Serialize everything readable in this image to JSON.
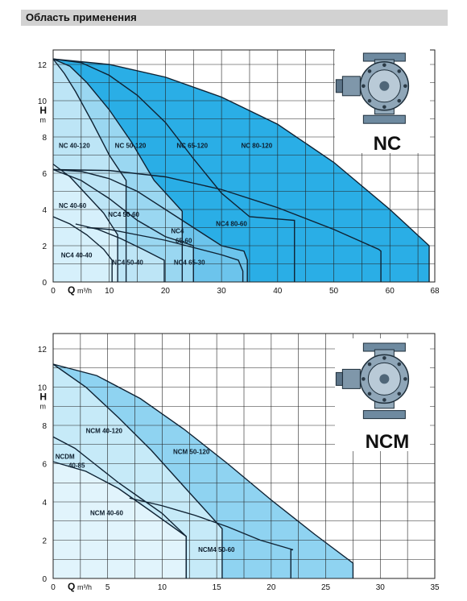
{
  "header": {
    "title": "Область применения"
  },
  "colors": {
    "background": "#ffffff",
    "grid": "#222222",
    "header_bar": "#d2d2d2",
    "fills_nc": [
      "#d6f0fb",
      "#bde5f6",
      "#9ad7f1",
      "#6cc4ec",
      "#2aaee6"
    ],
    "fills_ncm": [
      "#e1f4fc",
      "#c6eaf8",
      "#8fd3f1"
    ]
  },
  "chart_data": [
    {
      "type": "area",
      "product": "NC",
      "xlabel": "Q",
      "xunit": "m³/h",
      "ylabel": "H",
      "yunit": "m",
      "xlim": [
        0,
        68
      ],
      "ylim": [
        0,
        12.8
      ],
      "x_ticks": [
        0,
        10,
        20,
        30,
        40,
        50,
        60,
        68
      ],
      "y_ticks": [
        0,
        2,
        4,
        6,
        8,
        10,
        12
      ],
      "tick_labels_x": [
        "0",
        "10",
        "20",
        "30",
        "40",
        "50",
        "60",
        "68"
      ],
      "tick_labels_y": [
        "0",
        "2",
        "4",
        "6",
        "8",
        "10",
        "12"
      ],
      "pump_illustration": "pump-drawing",
      "series": [
        {
          "name": "NC 80-120",
          "points": [
            [
              0,
              12.3
            ],
            [
              10,
              12.0
            ],
            [
              20,
              11.3
            ],
            [
              30,
              10.2
            ],
            [
              40,
              8.7
            ],
            [
              50,
              6.6
            ],
            [
              60,
              4.0
            ],
            [
              67,
              2.0
            ]
          ],
          "qmax": 67,
          "hmin": 2.0
        },
        {
          "name": "NC 65-120",
          "points": [
            [
              0,
              12.3
            ],
            [
              5,
              12.1
            ],
            [
              10,
              11.4
            ],
            [
              15,
              10.3
            ],
            [
              20,
              8.8
            ],
            [
              25,
              6.8
            ],
            [
              30,
              4.9
            ],
            [
              35,
              3.6
            ],
            [
              43,
              3.4
            ]
          ],
          "qmax": 43,
          "hmin": 3.4
        },
        {
          "name": "NC 50-120",
          "points": [
            [
              0,
              12.3
            ],
            [
              3,
              11.9
            ],
            [
              6,
              11.0
            ],
            [
              10,
              9.5
            ],
            [
              14,
              7.7
            ],
            [
              18,
              5.6
            ],
            [
              23,
              3.9
            ]
          ],
          "qmax": 23,
          "hmin": 3.9
        },
        {
          "name": "NC 40-120",
          "points": [
            [
              0,
              12.3
            ],
            [
              2,
              11.5
            ],
            [
              4,
              10.5
            ],
            [
              7,
              8.8
            ],
            [
              10,
              7.0
            ],
            [
              13,
              5.6
            ]
          ],
          "qmax": 13,
          "hmin": 5.6
        },
        {
          "name": "NC4 80-60",
          "points": [
            [
              0,
              6.2
            ],
            [
              10,
              6.15
            ],
            [
              20,
              5.8
            ],
            [
              30,
              5.1
            ],
            [
              40,
              4.1
            ],
            [
              50,
              2.9
            ],
            [
              58,
              1.8
            ]
          ],
          "qmax": 58.4,
          "hmin": 1.7
        },
        {
          "name": "NC4 65-60",
          "points": [
            [
              0,
              6.2
            ],
            [
              5,
              6.1
            ],
            [
              10,
              5.7
            ],
            [
              15,
              5.0
            ],
            [
              20,
              4.0
            ],
            [
              25,
              3.0
            ],
            [
              30,
              2.0
            ],
            [
              34,
              1.7
            ]
          ],
          "qmax": 34.6,
          "hmin": 1.2
        },
        {
          "name": "NC4 50-60",
          "points": [
            [
              0,
              6.2
            ],
            [
              5,
              5.6
            ],
            [
              10,
              4.6
            ],
            [
              15,
              3.4
            ],
            [
              20,
              2.5
            ],
            [
              25,
              2.0
            ]
          ],
          "qmax": 25,
          "hmin": 2.0
        },
        {
          "name": "NC 40-60",
          "points": [
            [
              0,
              6.5
            ],
            [
              3,
              5.8
            ],
            [
              6,
              4.8
            ],
            [
              9,
              3.8
            ],
            [
              11.5,
              2.6
            ]
          ],
          "qmax": 11.5,
          "hmin": 2.6
        },
        {
          "name": "NC4 65-30",
          "points": [
            [
              6,
              3.0
            ],
            [
              10,
              2.9
            ],
            [
              15,
              2.6
            ],
            [
              20,
              2.3
            ],
            [
              25,
              1.9
            ],
            [
              30,
              1.5
            ],
            [
              33,
              1.2
            ]
          ],
          "qmax": 33.8,
          "hmin": 0.6
        },
        {
          "name": "NC4 50-40",
          "points": [
            [
              4,
              3.2
            ],
            [
              8,
              2.9
            ],
            [
              12,
              2.4
            ],
            [
              16,
              1.8
            ],
            [
              19.8,
              1.2
            ]
          ],
          "qmax": 19.8,
          "hmin": 1.2
        },
        {
          "name": "NC4 40-40",
          "points": [
            [
              0,
              3.6
            ],
            [
              3,
              3.2
            ],
            [
              6,
              2.6
            ],
            [
              9,
              1.8
            ],
            [
              10.5,
              1.2
            ]
          ],
          "qmax": 10.5,
          "hmin": 1.2
        }
      ],
      "labels": [
        {
          "text": "NC 40-120",
          "x": 1,
          "y": 7.4
        },
        {
          "text": "NC 50-120",
          "x": 11,
          "y": 7.4
        },
        {
          "text": "NC 65-120",
          "x": 22,
          "y": 7.4
        },
        {
          "text": "NC 80-120",
          "x": 33.5,
          "y": 7.4
        },
        {
          "text": "NC 40-60",
          "x": 1,
          "y": 4.1
        },
        {
          "text": "NC4 50-60",
          "x": 9.8,
          "y": 3.6
        },
        {
          "text": "NC4",
          "x": 21,
          "y": 2.7
        },
        {
          "text": "65-60",
          "x": 21.8,
          "y": 2.15
        },
        {
          "text": "NC4 80-60",
          "x": 29,
          "y": 3.1
        },
        {
          "text": "NC4 40-40",
          "x": 1.4,
          "y": 1.35
        },
        {
          "text": "NC4 50-40",
          "x": 10.5,
          "y": 0.95
        },
        {
          "text": "NC4 65-30",
          "x": 21.5,
          "y": 0.95
        }
      ]
    },
    {
      "type": "area",
      "product": "NCM",
      "xlabel": "Q",
      "xunit": "m³/h",
      "ylabel": "H",
      "yunit": "m",
      "xlim": [
        0,
        35
      ],
      "ylim": [
        0,
        12.8
      ],
      "x_ticks": [
        0,
        5,
        10,
        15,
        20,
        25,
        30,
        35
      ],
      "y_ticks": [
        0,
        2,
        4,
        6,
        8,
        10,
        12
      ],
      "tick_labels_x": [
        "0",
        "5",
        "10",
        "15",
        "20",
        "25",
        "30",
        "35"
      ],
      "tick_labels_y": [
        "0",
        "2",
        "4",
        "6",
        "8",
        "10",
        "12"
      ],
      "pump_illustration": "pump-drawing",
      "series": [
        {
          "name": "NCM 50-120",
          "points": [
            [
              0,
              11.2
            ],
            [
              4,
              10.6
            ],
            [
              8,
              9.4
            ],
            [
              12,
              7.8
            ],
            [
              16,
              6.0
            ],
            [
              20,
              4.1
            ],
            [
              24,
              2.3
            ],
            [
              27.5,
              0.8
            ]
          ],
          "qmax": 27.5,
          "hmin": 0.8
        },
        {
          "name": "NCM 40-120",
          "points": [
            [
              0,
              11.2
            ],
            [
              3,
              10.0
            ],
            [
              6,
              8.4
            ],
            [
              9,
              6.7
            ],
            [
              12,
              4.8
            ],
            [
              15.5,
              2.6
            ]
          ],
          "qmax": 15.5,
          "hmin": 2.6
        },
        {
          "name": "NCM4 50-60",
          "points": [
            [
              7,
              4.2
            ],
            [
              10,
              3.8
            ],
            [
              13,
              3.3
            ],
            [
              16,
              2.7
            ],
            [
              19,
              2.0
            ],
            [
              22,
              1.5
            ]
          ],
          "qmax": 21.8,
          "hmin": 1.5
        },
        {
          "name": "NCDM 40-85",
          "points": [
            [
              0,
              7.4
            ],
            [
              2,
              6.8
            ],
            [
              4,
              5.9
            ],
            [
              6,
              5.0
            ],
            [
              8,
              4.2
            ],
            [
              10,
              3.4
            ],
            [
              12.2,
              2.2
            ]
          ],
          "qmax": 12.2,
          "hmin": 2.2
        },
        {
          "name": "NCM 40-60",
          "points": [
            [
              0,
              6.1
            ],
            [
              3,
              5.6
            ],
            [
              6,
              4.7
            ],
            [
              9,
              3.5
            ],
            [
              12.2,
              2.2
            ]
          ],
          "qmax": 12.2,
          "hmin": 2.2
        }
      ],
      "labels": [
        {
          "text": "NCM 40-120",
          "x": 3,
          "y": 7.6
        },
        {
          "text": "NCM 50-120",
          "x": 11,
          "y": 6.5
        },
        {
          "text": "NCDM",
          "x": 0.2,
          "y": 6.25
        },
        {
          "text": "40-85",
          "x": 1.4,
          "y": 5.8
        },
        {
          "text": "NCM 40-60",
          "x": 3.4,
          "y": 3.3
        },
        {
          "text": "NCM4 50-60",
          "x": 13.3,
          "y": 1.4
        }
      ]
    }
  ]
}
